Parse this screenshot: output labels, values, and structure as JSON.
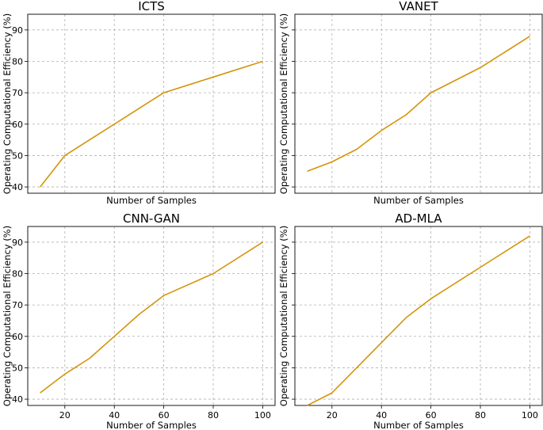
{
  "chart_data": [
    {
      "type": "line",
      "title": "ICTS",
      "xlabel": "Number of Samples",
      "ylabel": "Operating Computational Efficiency (%)",
      "xlim": [
        5,
        105
      ],
      "ylim": [
        38,
        95
      ],
      "xticks": [],
      "yticks": [
        40,
        50,
        60,
        70,
        80,
        90
      ],
      "ytick_labels": [
        "40",
        "50",
        "60",
        "70",
        "80",
        "90"
      ],
      "grid": true,
      "color": "#d4940a",
      "x": [
        10,
        20,
        30,
        40,
        50,
        60,
        80,
        100
      ],
      "y": [
        40,
        50,
        55,
        60,
        65,
        70,
        75,
        80
      ]
    },
    {
      "type": "line",
      "title": "VANET",
      "xlabel": "Number of Samples",
      "ylabel": "Operating Computational Efficiency (%)",
      "xlim": [
        5,
        105
      ],
      "ylim": [
        38,
        95
      ],
      "xticks": [],
      "yticks": [
        40,
        50,
        60,
        70,
        80,
        90
      ],
      "ytick_labels": [],
      "grid": true,
      "color": "#d4940a",
      "x": [
        10,
        20,
        30,
        40,
        50,
        60,
        80,
        100
      ],
      "y": [
        45,
        48,
        52,
        58,
        63,
        70,
        78,
        88
      ]
    },
    {
      "type": "line",
      "title": "CNN-GAN",
      "xlabel": "Number of Samples",
      "ylabel": "Operating Computational Efficiency (%)",
      "xlim": [
        5,
        105
      ],
      "ylim": [
        38,
        95
      ],
      "xticks": [
        20,
        40,
        60,
        80,
        100
      ],
      "xtick_labels": [
        "20",
        "40",
        "60",
        "80",
        "100"
      ],
      "yticks": [
        40,
        50,
        60,
        70,
        80,
        90
      ],
      "ytick_labels": [
        "40",
        "50",
        "60",
        "70",
        "80",
        "90"
      ],
      "grid": true,
      "color": "#d4940a",
      "x": [
        10,
        20,
        30,
        40,
        50,
        60,
        80,
        100
      ],
      "y": [
        42,
        48,
        53,
        60,
        67,
        73,
        80,
        90
      ]
    },
    {
      "type": "line",
      "title": "AD-MLA",
      "xlabel": "Number of Samples",
      "ylabel": "Operating Computational Efficiency (%)",
      "xlim": [
        5,
        105
      ],
      "ylim": [
        38,
        95
      ],
      "xticks": [
        20,
        40,
        60,
        80,
        100
      ],
      "xtick_labels": [
        "20",
        "40",
        "60",
        "80",
        "100"
      ],
      "yticks": [
        40,
        50,
        60,
        70,
        80,
        90
      ],
      "ytick_labels": [],
      "grid": true,
      "color": "#d4940a",
      "x": [
        10,
        20,
        30,
        40,
        50,
        60,
        80,
        100
      ],
      "y": [
        38,
        42,
        50,
        58,
        66,
        72,
        82,
        92
      ]
    }
  ]
}
